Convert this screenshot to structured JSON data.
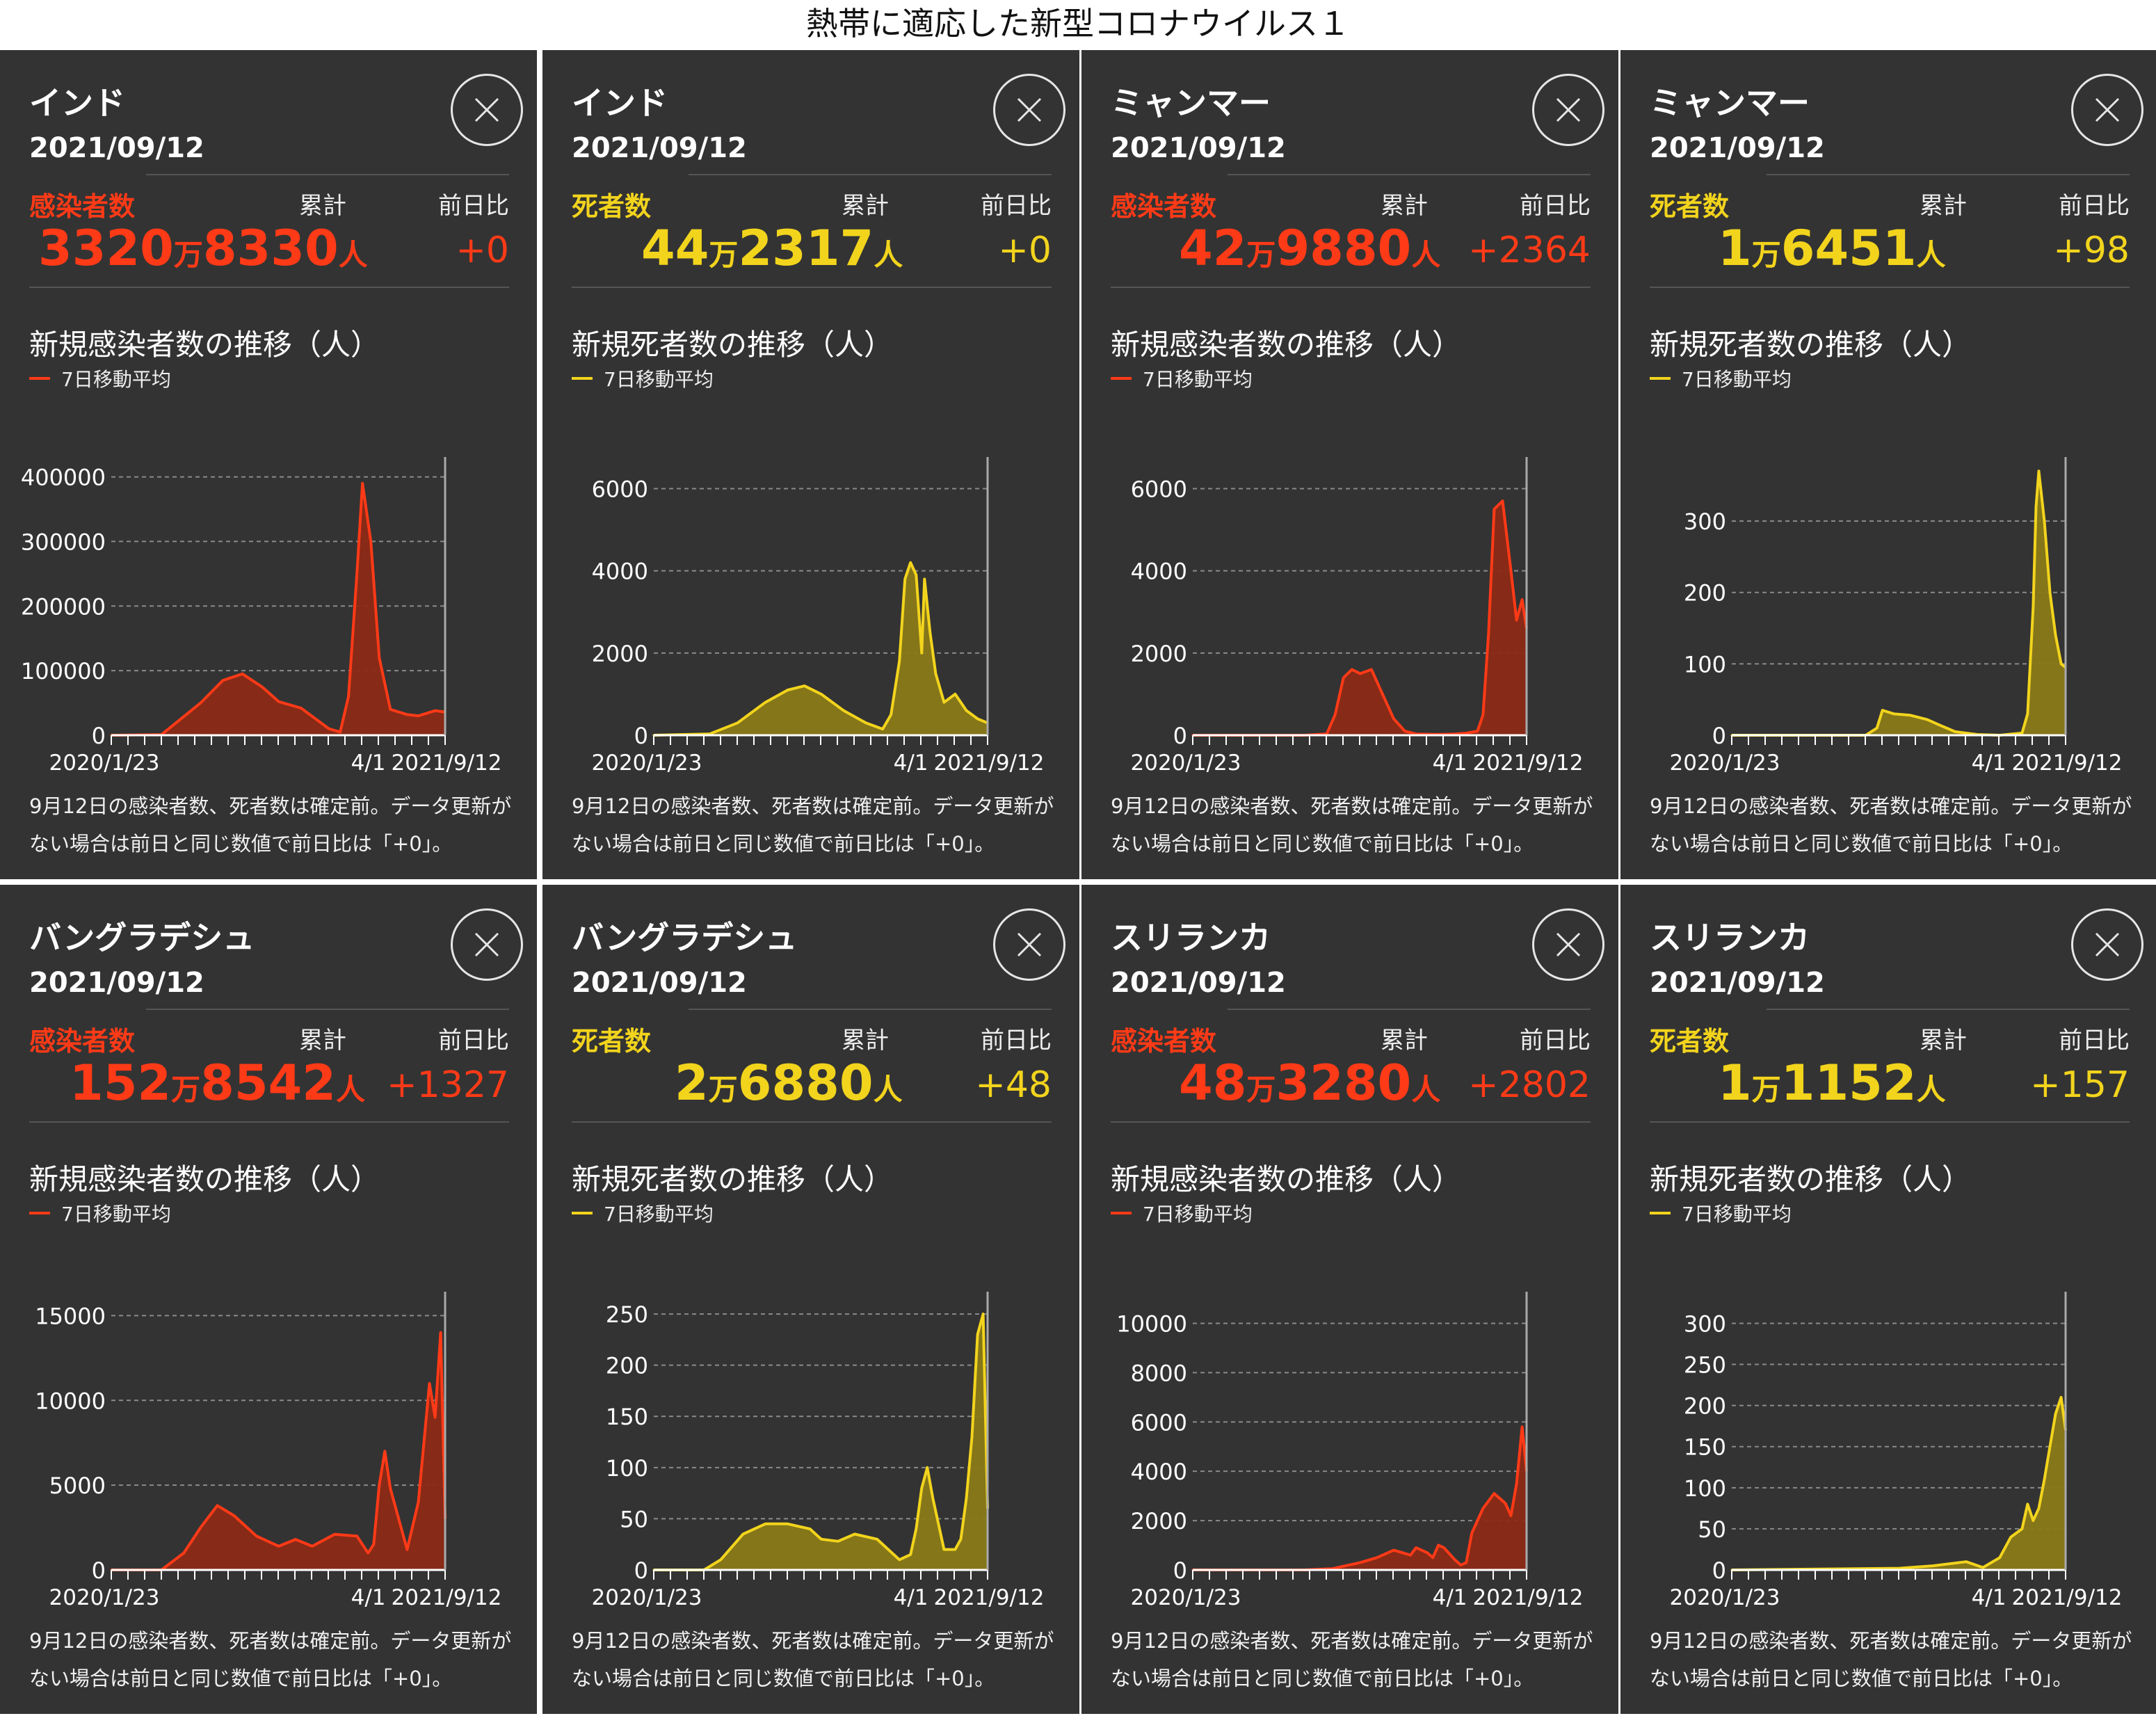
{
  "page_title": "熱帯に適応した新型コロナウイルス１",
  "common": {
    "date": "2021/09/12",
    "label_total": "累計",
    "label_diff": "前日比",
    "legend": "7日移動平均",
    "x_ticks": [
      "2020/1/23",
      "4/1",
      "2021/9/12"
    ],
    "note": "9月12日の感染者数、死者数は確定前。データ更新がない場合は前日と同じ数値で前日比は「+0」。"
  },
  "colors": {
    "cases": "#ff3a17",
    "deaths": "#f2d41d",
    "panel_bg": "#333333"
  },
  "icons": {
    "close": "close-icon"
  },
  "panels": [
    {
      "country": "インド",
      "metric": "感染者数",
      "kind": "cases",
      "total_big1": "3320",
      "total_unit1": "万",
      "total_big2": "8330",
      "total_unit2": "人",
      "diff": "+0",
      "chart_title": "新規感染者数の推移（人）"
    },
    {
      "country": "インド",
      "metric": "死者数",
      "kind": "deaths",
      "total_big1": "44",
      "total_unit1": "万",
      "total_big2": "2317",
      "total_unit2": "人",
      "diff": "+0",
      "chart_title": "新規死者数の推移（人）"
    },
    {
      "country": "ミャンマー",
      "metric": "感染者数",
      "kind": "cases",
      "total_big1": "42",
      "total_unit1": "万",
      "total_big2": "9880",
      "total_unit2": "人",
      "diff": "+2364",
      "chart_title": "新規感染者数の推移（人）"
    },
    {
      "country": "ミャンマー",
      "metric": "死者数",
      "kind": "deaths",
      "total_big1": "1",
      "total_unit1": "万",
      "total_big2": "6451",
      "total_unit2": "人",
      "diff": "+98",
      "chart_title": "新規死者数の推移（人）"
    },
    {
      "country": "バングラデシュ",
      "metric": "感染者数",
      "kind": "cases",
      "total_big1": "152",
      "total_unit1": "万",
      "total_big2": "8542",
      "total_unit2": "人",
      "diff": "+1327",
      "chart_title": "新規感染者数の推移（人）"
    },
    {
      "country": "バングラデシュ",
      "metric": "死者数",
      "kind": "deaths",
      "total_big1": "2",
      "total_unit1": "万",
      "total_big2": "6880",
      "total_unit2": "人",
      "diff": "+48",
      "chart_title": "新規死者数の推移（人）"
    },
    {
      "country": "スリランカ",
      "metric": "感染者数",
      "kind": "cases",
      "total_big1": "48",
      "total_unit1": "万",
      "total_big2": "3280",
      "total_unit2": "人",
      "diff": "+2802",
      "chart_title": "新規感染者数の推移（人）"
    },
    {
      "country": "スリランカ",
      "metric": "死者数",
      "kind": "deaths",
      "total_big1": "1",
      "total_unit1": "万",
      "total_big2": "1152",
      "total_unit2": "人",
      "diff": "+157",
      "chart_title": "新規死者数の推移（人）"
    }
  ],
  "chart_data": [
    {
      "type": "area",
      "title": "新規感染者数の推移（人）",
      "series": [
        {
          "name": "7日移動平均",
          "x": [
            0,
            90,
            160,
            200,
            235,
            270,
            300,
            340,
            390,
            410,
            425,
            440,
            450,
            465,
            480,
            500,
            530,
            550,
            580,
            598
          ],
          "values": [
            0,
            1000,
            50000,
            85000,
            95000,
            75000,
            52000,
            42000,
            10000,
            5000,
            60000,
            250000,
            390000,
            300000,
            120000,
            40000,
            32000,
            30000,
            38000,
            36000
          ]
        }
      ],
      "xlim": [
        0,
        598
      ],
      "ylim": [
        0,
        420000
      ],
      "yticks": [
        0,
        100000,
        200000,
        300000,
        400000
      ]
    },
    {
      "type": "area",
      "title": "新規死者数の推移（人）",
      "series": [
        {
          "name": "7日移動平均",
          "x": [
            0,
            100,
            150,
            200,
            240,
            270,
            300,
            340,
            380,
            410,
            425,
            440,
            450,
            460,
            470,
            480,
            485,
            495,
            505,
            520,
            540,
            560,
            580,
            598
          ],
          "values": [
            0,
            30,
            300,
            800,
            1100,
            1200,
            1000,
            600,
            300,
            150,
            500,
            1800,
            3800,
            4200,
            3900,
            2000,
            3800,
            2500,
            1500,
            800,
            1000,
            600,
            400,
            300
          ]
        }
      ],
      "xlim": [
        0,
        598
      ],
      "ylim": [
        0,
        6600
      ],
      "yticks": [
        0,
        2000,
        4000,
        6000
      ]
    },
    {
      "type": "area",
      "title": "新規感染者数の推移（人）",
      "series": [
        {
          "name": "7日移動平均",
          "x": [
            0,
            200,
            240,
            255,
            270,
            285,
            300,
            320,
            340,
            360,
            380,
            400,
            430,
            450,
            470,
            490,
            510,
            520,
            530,
            540,
            555,
            570,
            580,
            590,
            598
          ],
          "values": [
            0,
            0,
            30,
            500,
            1400,
            1600,
            1500,
            1600,
            1000,
            400,
            100,
            30,
            20,
            20,
            30,
            50,
            100,
            500,
            2500,
            5500,
            5700,
            4000,
            2800,
            3300,
            2600
          ]
        }
      ],
      "xlim": [
        0,
        598
      ],
      "ylim": [
        0,
        6600
      ],
      "yticks": [
        0,
        2000,
        4000,
        6000
      ]
    },
    {
      "type": "area",
      "title": "新規死者数の推移（人）",
      "series": [
        {
          "name": "7日移動平均",
          "x": [
            0,
            200,
            240,
            260,
            270,
            290,
            320,
            350,
            370,
            400,
            440,
            480,
            520,
            530,
            540,
            545,
            550,
            560,
            570,
            580,
            590,
            598
          ],
          "values": [
            0,
            0,
            0,
            10,
            35,
            30,
            28,
            22,
            15,
            5,
            1,
            0,
            3,
            30,
            180,
            320,
            370,
            300,
            200,
            140,
            100,
            95
          ]
        }
      ],
      "xlim": [
        0,
        598
      ],
      "ylim": [
        0,
        380
      ],
      "yticks": [
        0,
        100,
        200,
        300
      ]
    },
    {
      "type": "area",
      "title": "新規感染者数の推移（人）",
      "series": [
        {
          "name": "7日移動平均",
          "x": [
            0,
            90,
            130,
            160,
            190,
            220,
            260,
            300,
            330,
            360,
            400,
            440,
            460,
            470,
            480,
            490,
            500,
            530,
            550,
            560,
            570,
            580,
            590,
            598
          ],
          "values": [
            0,
            0,
            1000,
            2500,
            3800,
            3200,
            2000,
            1400,
            1800,
            1400,
            2100,
            2000,
            1000,
            1500,
            5000,
            7000,
            4800,
            1200,
            4000,
            7500,
            11000,
            9000,
            14000,
            3000
          ]
        }
      ],
      "xlim": [
        0,
        598
      ],
      "ylim": [
        0,
        16000
      ],
      "yticks": [
        0,
        5000,
        10000,
        15000
      ]
    },
    {
      "type": "area",
      "title": "新規死者数の推移（人）",
      "series": [
        {
          "name": "7日移動平均",
          "x": [
            0,
            90,
            120,
            160,
            200,
            240,
            280,
            300,
            330,
            360,
            400,
            440,
            460,
            470,
            480,
            490,
            500,
            520,
            540,
            550,
            560,
            570,
            580,
            590,
            598
          ],
          "values": [
            0,
            0,
            10,
            35,
            45,
            45,
            40,
            30,
            28,
            35,
            30,
            10,
            15,
            40,
            80,
            100,
            70,
            20,
            20,
            30,
            70,
            130,
            230,
            250,
            60
          ]
        }
      ],
      "xlim": [
        0,
        598
      ],
      "ylim": [
        0,
        265
      ],
      "yticks": [
        0,
        50,
        100,
        150,
        200,
        250
      ]
    },
    {
      "type": "area",
      "title": "新規感染者数の推移（人）",
      "series": [
        {
          "name": "7日移動平均",
          "x": [
            0,
            200,
            250,
            280,
            300,
            330,
            360,
            390,
            400,
            420,
            430,
            440,
            450,
            470,
            480,
            490,
            500,
            520,
            540,
            560,
            570,
            580,
            590,
            598
          ],
          "values": [
            0,
            0,
            50,
            200,
            300,
            500,
            800,
            600,
            900,
            700,
            500,
            1000,
            900,
            400,
            200,
            300,
            1500,
            2500,
            3100,
            2700,
            2200,
            3500,
            5800,
            4000
          ]
        }
      ],
      "xlim": [
        0,
        598
      ],
      "ylim": [
        0,
        11000
      ],
      "yticks": [
        0,
        2000,
        4000,
        6000,
        8000,
        10000
      ]
    },
    {
      "type": "area",
      "title": "新規死者数の推移（人）",
      "series": [
        {
          "name": "7日移動平均",
          "x": [
            0,
            300,
            360,
            420,
            450,
            480,
            500,
            520,
            530,
            540,
            550,
            560,
            570,
            580,
            590,
            598
          ],
          "values": [
            0,
            2,
            5,
            10,
            3,
            15,
            40,
            50,
            80,
            60,
            75,
            110,
            150,
            190,
            210,
            170
          ]
        }
      ],
      "xlim": [
        0,
        598
      ],
      "ylim": [
        0,
        330
      ],
      "yticks": [
        0,
        50,
        100,
        150,
        200,
        250,
        300
      ]
    }
  ]
}
